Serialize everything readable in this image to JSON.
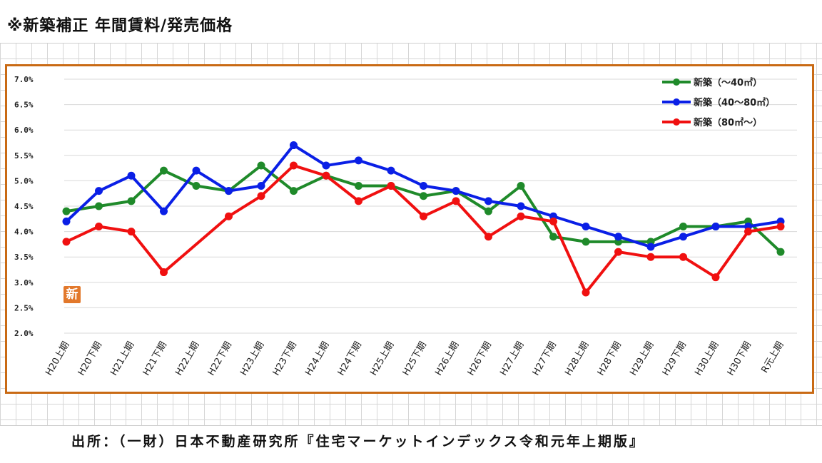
{
  "header": {
    "title": "※新築補正 年間賃料/発売価格"
  },
  "source": {
    "text": "出所：（一財）日本不動産研究所『住宅マーケットインデックス令和元年上期版』"
  },
  "badge": {
    "text": "新"
  },
  "chart_data": {
    "type": "line",
    "categories": [
      "H20上期",
      "H20下期",
      "H21上期",
      "H21下期",
      "H22上期",
      "H22下期",
      "H23上期",
      "H23下期",
      "H24上期",
      "H24下期",
      "H25上期",
      "H25下期",
      "H26上期",
      "H26下期",
      "H27上期",
      "H27下期",
      "H28上期",
      "H28下期",
      "H29上期",
      "H29下期",
      "H30上期",
      "H30下期",
      "R元上期"
    ],
    "y_ticks": [
      "7.0%",
      "6.5%",
      "6.0%",
      "5.5%",
      "5.0%",
      "4.5%",
      "4.0%",
      "3.5%",
      "3.0%",
      "2.5%",
      "2.0%"
    ],
    "ylim": [
      2.0,
      7.0
    ],
    "unit": "%",
    "grid": true,
    "legend_position": "top-right",
    "series": [
      {
        "name": "新築（～40㎡）",
        "color": "#1f8a2a",
        "values": [
          4.4,
          4.5,
          4.6,
          5.2,
          4.9,
          4.8,
          5.3,
          4.8,
          5.1,
          4.9,
          4.9,
          4.7,
          4.8,
          4.4,
          4.9,
          3.9,
          3.8,
          3.8,
          3.8,
          4.1,
          4.1,
          4.2,
          3.6
        ]
      },
      {
        "name": "新築（40～80㎡）",
        "color": "#0a1fe6",
        "values": [
          4.2,
          4.8,
          5.1,
          4.4,
          5.2,
          4.8,
          4.9,
          5.7,
          5.3,
          5.4,
          5.2,
          4.9,
          4.8,
          4.6,
          4.5,
          4.3,
          4.1,
          3.9,
          3.7,
          3.9,
          4.1,
          4.1,
          4.2
        ]
      },
      {
        "name": "新築（80㎡～）",
        "color": "#f01010",
        "values": [
          3.8,
          4.1,
          4.0,
          3.2,
          null,
          4.3,
          4.7,
          5.3,
          5.1,
          4.6,
          4.9,
          4.3,
          4.6,
          3.9,
          4.3,
          4.2,
          2.8,
          3.6,
          3.5,
          3.5,
          3.1,
          4.0,
          4.1
        ]
      }
    ]
  }
}
